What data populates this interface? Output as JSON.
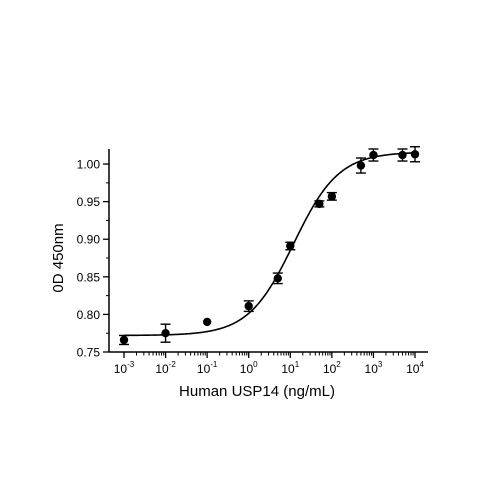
{
  "chart_data": {
    "type": "scatter",
    "xlabel": "Human USP14 (ng/mL)",
    "ylabel": "0D 450nm",
    "xscale": "log",
    "xlim": [
      0.001,
      10000
    ],
    "ylim": [
      0.75,
      1.02
    ],
    "x_tick_exponents": [
      "-3",
      "-2",
      "-1",
      "0",
      "1",
      "2",
      "3",
      "4"
    ],
    "y_ticks": [
      "0.75",
      "0.80",
      "0.85",
      "0.90",
      "0.95",
      "1.00"
    ],
    "grid": false,
    "fit_curve": "four-parameter logistic",
    "series": [
      {
        "x": [
          0.001,
          0.01,
          0.1,
          1,
          5,
          10,
          50,
          100,
          500,
          1000,
          5000,
          10000
        ],
        "y": [
          0.766,
          0.775,
          0.79,
          0.811,
          0.848,
          0.891,
          0.947,
          0.957,
          0.998,
          1.012,
          1.012,
          1.013
        ],
        "error": [
          0.006,
          0.012,
          0.0,
          0.007,
          0.007,
          0.005,
          0.004,
          0.005,
          0.01,
          0.008,
          0.008,
          0.01
        ]
      }
    ],
    "fit": {
      "bottom": 0.772,
      "top": 1.016,
      "ec50": 12,
      "hill": 0.8
    }
  }
}
